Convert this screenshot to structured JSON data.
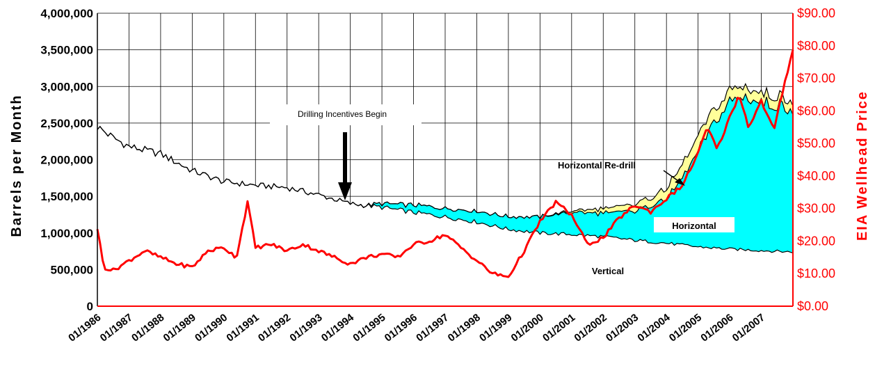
{
  "chart_data": {
    "type": "area",
    "ylabel": "Barrels per Month",
    "y2label": "EIA Wellhead Price",
    "ylim": [
      0,
      4000000
    ],
    "y2lim": [
      0,
      90
    ],
    "yticks": [
      "4,000,000",
      "3,500,000",
      "3,000,000",
      "2,500,000",
      "2,000,000",
      "1,500,000",
      "1,000,000",
      "500,000",
      "0"
    ],
    "y2ticks": [
      "$90.00",
      "$80.00",
      "$70.00",
      "$60.00",
      "$50.00",
      "$40.00",
      "$30.00",
      "$20.00",
      "$10.00",
      "$0.00"
    ],
    "xticks": [
      "01/1986",
      "01/1987",
      "01/1988",
      "01/1989",
      "01/1990",
      "01/1991",
      "01/1992",
      "01/1993",
      "01/1994",
      "01/1995",
      "01/1996",
      "01/1997",
      "01/1998",
      "01/1999",
      "01/2000",
      "01/2001",
      "01/2002",
      "01/2003",
      "01/2004",
      "01/2005",
      "01/2006",
      "01/2007"
    ],
    "x_range": [
      1986.0,
      2008.0
    ],
    "grid": true,
    "colors": {
      "vertical": "#ffffff",
      "horizontal": "#00ffff",
      "redrill": "#ffff99",
      "price": "#ff0000",
      "outline": "#000000"
    },
    "series": [
      {
        "name": "Vertical",
        "axis": "left",
        "x": [
          1986.0,
          1986.5,
          1987.0,
          1988.0,
          1989.0,
          1990.0,
          1991.0,
          1992.0,
          1993.0,
          1994.0,
          1995.0,
          1996.0,
          1997.0,
          1998.0,
          1999.0,
          2000.0,
          2001.0,
          2002.0,
          2003.0,
          2004.0,
          2005.0,
          2006.0,
          2007.0,
          2008.0
        ],
        "values": [
          2450000,
          2300000,
          2180000,
          2080000,
          1850000,
          1700000,
          1650000,
          1620000,
          1520000,
          1400000,
          1350000,
          1280000,
          1220000,
          1150000,
          1050000,
          1000000,
          980000,
          950000,
          900000,
          860000,
          810000,
          780000,
          760000,
          740000
        ]
      },
      {
        "name": "Horizontal",
        "axis": "left",
        "x": [
          1986.0,
          1994.5,
          1995.0,
          1996.0,
          1997.0,
          1998.0,
          1999.0,
          2000.0,
          2001.0,
          2002.0,
          2003.0,
          2004.0,
          2004.5,
          2005.0,
          2005.5,
          2006.0,
          2006.5,
          2007.0,
          2007.5,
          2008.0
        ],
        "values": [
          0,
          0,
          50000,
          100000,
          120000,
          150000,
          170000,
          220000,
          300000,
          320000,
          400000,
          600000,
          900000,
          1300000,
          1700000,
          2000000,
          2100000,
          2020000,
          2000000,
          1960000
        ]
      },
      {
        "name": "Horizontal Re-drill",
        "axis": "left",
        "x": [
          1986.0,
          2000.0,
          2001.0,
          2002.0,
          2003.0,
          2003.5,
          2004.0,
          2004.5,
          2005.0,
          2005.5,
          2006.0,
          2006.5,
          2007.0,
          2007.5,
          2008.0
        ],
        "values": [
          0,
          0,
          20000,
          60000,
          90000,
          110000,
          150000,
          180000,
          200000,
          180000,
          160000,
          150000,
          130000,
          130000,
          130000
        ]
      },
      {
        "name": "EIA Wellhead Price",
        "axis": "right",
        "x": [
          1986.0,
          1986.2,
          1986.5,
          1987.0,
          1987.5,
          1988.0,
          1988.5,
          1989.0,
          1989.5,
          1990.0,
          1990.4,
          1990.75,
          1991.0,
          1991.5,
          1992.0,
          1992.5,
          1993.0,
          1993.5,
          1994.0,
          1994.5,
          1995.0,
          1995.5,
          1996.0,
          1996.5,
          1997.0,
          1997.5,
          1998.0,
          1998.5,
          1999.0,
          1999.5,
          2000.0,
          2000.5,
          2001.0,
          2001.5,
          2002.0,
          2002.5,
          2003.0,
          2003.5,
          2004.0,
          2004.5,
          2005.0,
          2005.3,
          2005.6,
          2006.0,
          2006.3,
          2006.6,
          2007.0,
          2007.4,
          2007.7,
          2008.0
        ],
        "values": [
          24,
          12,
          11,
          14,
          17,
          15,
          13,
          12,
          17,
          18,
          15,
          32,
          18,
          19,
          17,
          19,
          17,
          15,
          13,
          15,
          16,
          15,
          19,
          20,
          22,
          18,
          14,
          10,
          9,
          17,
          26,
          32,
          28,
          19,
          21,
          27,
          31,
          29,
          33,
          37,
          47,
          55,
          48,
          58,
          65,
          55,
          63,
          54,
          67,
          79
        ]
      }
    ],
    "annotations": [
      {
        "text": "Drilling Incentives Begin"
      },
      {
        "text": "Horizontal Re-drill"
      },
      {
        "text": "Horizontal"
      },
      {
        "text": "Vertical"
      }
    ]
  }
}
